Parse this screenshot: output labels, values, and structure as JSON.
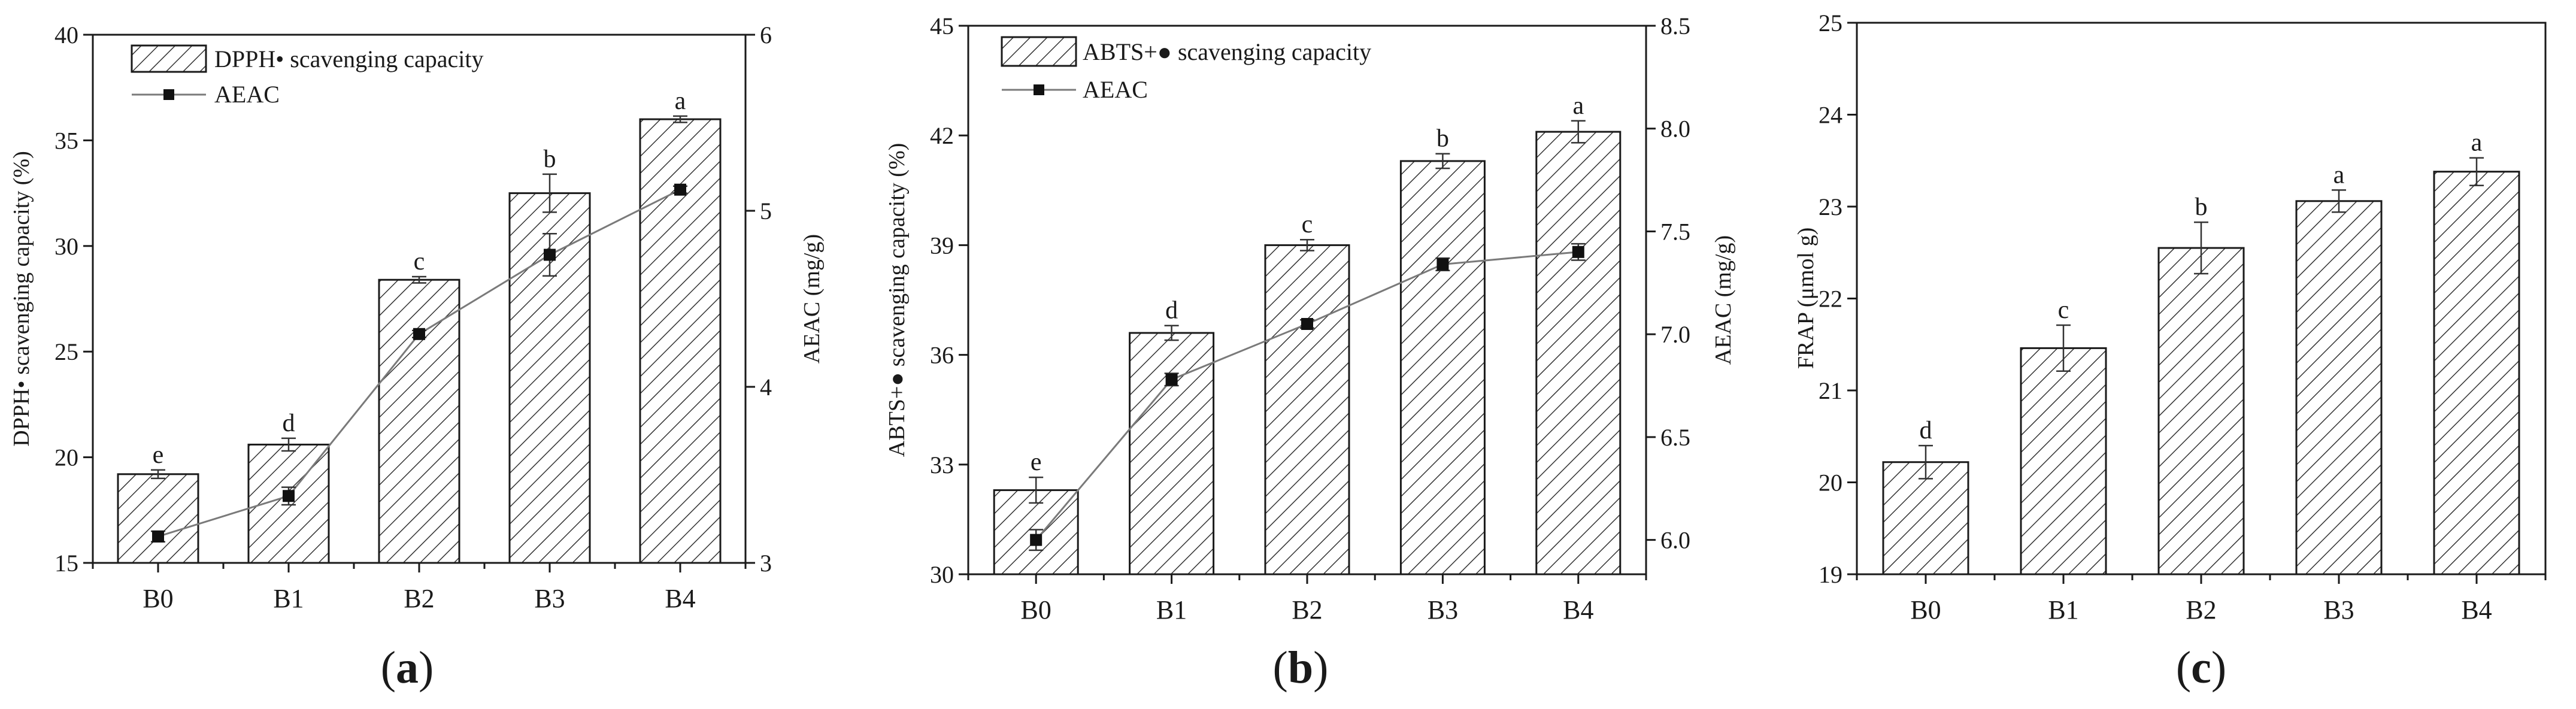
{
  "chart_data": [
    {
      "type": "bar",
      "panel_label": "a",
      "categories": [
        "B0",
        "B1",
        "B2",
        "B3",
        "B4"
      ],
      "series": [
        {
          "name": "DPPH• scavenging capacity",
          "axis": "left",
          "values": [
            19.2,
            20.6,
            28.4,
            32.5,
            36.0
          ],
          "errors": [
            0.2,
            0.3,
            0.15,
            0.9,
            0.15
          ],
          "letters": [
            "e",
            "d",
            "c",
            "b",
            "a"
          ]
        },
        {
          "name": "AEAC",
          "type": "line",
          "axis": "right",
          "values": [
            3.15,
            3.38,
            4.3,
            4.75,
            5.12
          ],
          "errors": [
            0.03,
            0.05,
            0.02,
            0.12,
            0.02
          ]
        }
      ],
      "ylabel": "DPPH• scavenging capacity  (%)",
      "ylim": [
        15,
        40
      ],
      "yticks": [
        "15",
        "20",
        "25",
        "30",
        "35",
        "40"
      ],
      "ylabel_right": "AEAC (mg/g)",
      "ylim_right": [
        3,
        6
      ],
      "yticks_right": [
        "3",
        "4",
        "5",
        "6"
      ],
      "legend": [
        "DPPH• scavenging capacity",
        "AEAC"
      ],
      "legend_position": "top-left"
    },
    {
      "type": "bar",
      "panel_label": "b",
      "categories": [
        "B0",
        "B1",
        "B2",
        "B3",
        "B4"
      ],
      "series": [
        {
          "name": "ABTS+● scavenging capacity",
          "axis": "left",
          "values": [
            32.3,
            36.6,
            39.0,
            41.3,
            42.1
          ],
          "errors": [
            0.35,
            0.2,
            0.15,
            0.2,
            0.3
          ],
          "letters": [
            "e",
            "d",
            "c",
            "b",
            "a"
          ]
        },
        {
          "name": "AEAC",
          "type": "line",
          "axis": "right",
          "values": [
            6.0,
            6.78,
            7.05,
            7.34,
            7.4
          ],
          "errors": [
            0.05,
            0.03,
            0.02,
            0.03,
            0.04
          ]
        }
      ],
      "ylabel": "ABTS+● scavenging capacity (%)",
      "ylim": [
        30,
        45
      ],
      "yticks": [
        "30",
        "33",
        "36",
        "39",
        "42",
        "45"
      ],
      "ylabel_right": "AEAC (mg/g)",
      "ylim_right": [
        5.833,
        8.5
      ],
      "yticks_right": [
        "6.0",
        "6.5",
        "7.0",
        "7.5",
        "8.0",
        "8.5"
      ],
      "legend": [
        "ABTS+● scavenging capacity",
        "AEAC"
      ],
      "legend_position": "top-left"
    },
    {
      "type": "bar",
      "panel_label": "c",
      "categories": [
        "B0",
        "B1",
        "B2",
        "B3",
        "B4"
      ],
      "series": [
        {
          "name": "FRAP",
          "axis": "left",
          "values": [
            20.22,
            21.46,
            22.55,
            23.06,
            23.38
          ],
          "errors": [
            0.18,
            0.25,
            0.28,
            0.12,
            0.15
          ],
          "letters": [
            "d",
            "c",
            "b",
            "a",
            "a"
          ]
        }
      ],
      "ylabel": "FRAP (μmol g)",
      "ylim": [
        19,
        25
      ],
      "yticks": [
        "19",
        "20",
        "21",
        "22",
        "23",
        "24",
        "25"
      ]
    }
  ]
}
